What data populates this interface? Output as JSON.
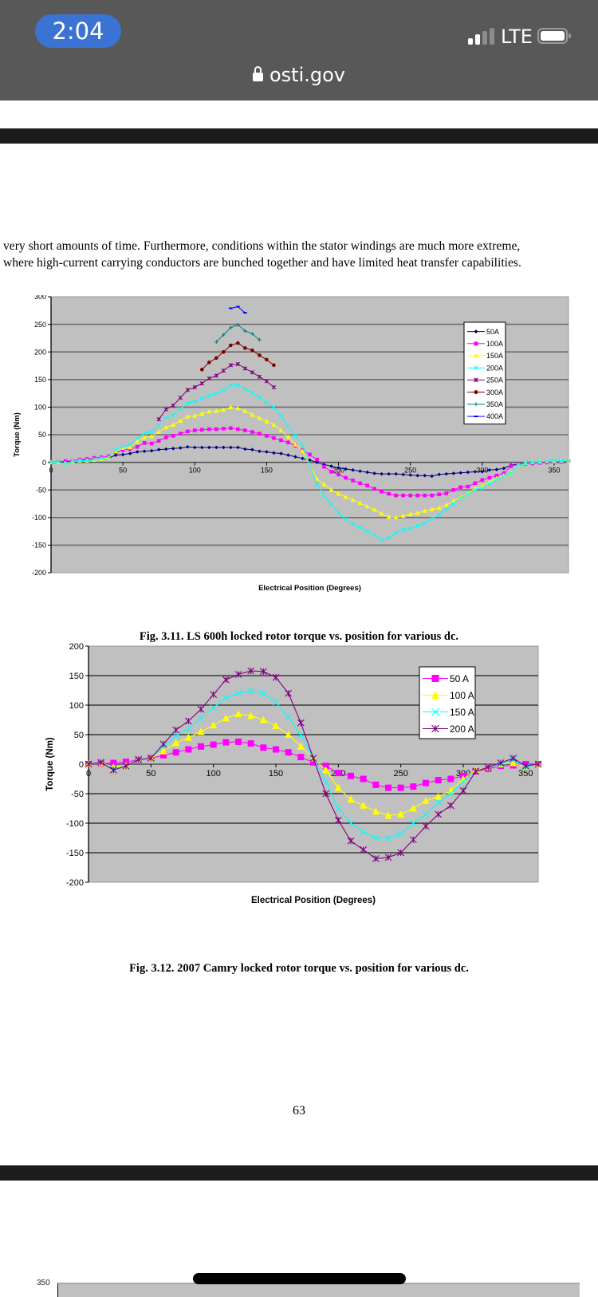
{
  "status_bar": {
    "time": "2:04",
    "network": "LTE",
    "url": "osti.gov"
  },
  "document": {
    "paragraph_lines": [
      "very short amounts of time.  Furthermore, conditions within the stator windings are much more extreme,",
      "where high-current carrying conductors are bunched together and have limited heat transfer capabilities."
    ],
    "page_number": "63",
    "next_page_axis_tick": "350"
  },
  "chart_data": [
    {
      "id": "fig311",
      "type": "line",
      "caption": "Fig. 3.11. LS 600h locked rotor torque vs. position for various dc.",
      "xlabel": "Electrical Position (Degrees)",
      "ylabel": "Torque (Nm)",
      "xlim": [
        0,
        360
      ],
      "ylim": [
        -200,
        300
      ],
      "xticks": [
        0,
        50,
        100,
        150,
        200,
        250,
        300,
        350
      ],
      "yticks": [
        300,
        250,
        200,
        150,
        100,
        50,
        0,
        -50,
        -100,
        -150,
        -200
      ],
      "grid": true,
      "legend_position": "top-right",
      "series": [
        {
          "name": "50A",
          "color": "#000080",
          "marker": "diamond",
          "x": [
            0,
            5,
            10,
            15,
            20,
            25,
            30,
            35,
            40,
            45,
            50,
            55,
            60,
            65,
            70,
            75,
            80,
            85,
            90,
            95,
            100,
            105,
            110,
            115,
            120,
            125,
            130,
            135,
            140,
            145,
            150,
            155,
            160,
            165,
            170,
            175,
            180,
            185,
            190,
            195,
            200,
            205,
            210,
            215,
            220,
            225,
            230,
            235,
            240,
            245,
            250,
            255,
            260,
            265,
            270,
            275,
            280,
            285,
            290,
            295,
            300,
            305,
            310,
            315,
            320,
            325,
            330,
            335,
            340,
            345,
            350,
            355,
            360
          ],
          "y": [
            0,
            0,
            1,
            2,
            3,
            4,
            5,
            6,
            8,
            13,
            14,
            16,
            19,
            20,
            21,
            23,
            24,
            25,
            26,
            28,
            27,
            27,
            27,
            27,
            27,
            27,
            27,
            24,
            23,
            20,
            19,
            17,
            16,
            13,
            10,
            7,
            4,
            0,
            -4,
            -7,
            -10,
            -12,
            -14,
            -16,
            -18,
            -20,
            -21,
            -21,
            -21,
            -22,
            -23,
            -24,
            -24,
            -25,
            -22,
            -21,
            -20,
            -19,
            -18,
            -17,
            -17,
            -14,
            -13,
            -11,
            -5,
            -3,
            -2,
            -1,
            0,
            1,
            1,
            2,
            2
          ]
        },
        {
          "name": "100A",
          "color": "#ff00ff",
          "marker": "square",
          "x": [
            0,
            5,
            10,
            15,
            20,
            25,
            30,
            35,
            40,
            45,
            50,
            55,
            60,
            65,
            70,
            75,
            80,
            85,
            90,
            95,
            100,
            105,
            110,
            115,
            120,
            125,
            130,
            135,
            140,
            145,
            150,
            155,
            160,
            165,
            170,
            175,
            180,
            185,
            190,
            195,
            200,
            205,
            210,
            215,
            220,
            225,
            230,
            235,
            240,
            245,
            250,
            255,
            260,
            265,
            270,
            275,
            280,
            285,
            290,
            295,
            300,
            305,
            310,
            315,
            320,
            325,
            330,
            335,
            340,
            345,
            350,
            355,
            360
          ],
          "y": [
            0,
            1,
            2,
            3,
            5,
            6,
            8,
            9,
            11,
            18,
            22,
            24,
            28,
            35,
            34,
            39,
            45,
            48,
            52,
            56,
            58,
            59,
            60,
            60,
            61,
            62,
            60,
            58,
            55,
            52,
            48,
            44,
            40,
            36,
            30,
            22,
            14,
            5,
            -8,
            -17,
            -22,
            -28,
            -33,
            -38,
            -42,
            -48,
            -53,
            -57,
            -60,
            -60,
            -60,
            -60,
            -60,
            -60,
            -58,
            -56,
            -50,
            -45,
            -44,
            -38,
            -32,
            -28,
            -24,
            -20,
            -7,
            -4,
            -3,
            -2,
            -1,
            0,
            1,
            1,
            2
          ]
        },
        {
          "name": "150A",
          "color": "#ffff00",
          "marker": "triangle",
          "x": [
            0,
            5,
            10,
            15,
            20,
            25,
            30,
            35,
            40,
            45,
            50,
            55,
            60,
            65,
            70,
            75,
            80,
            85,
            90,
            95,
            100,
            105,
            110,
            115,
            120,
            125,
            130,
            135,
            140,
            145,
            150,
            155,
            160,
            165,
            170,
            175,
            185,
            190,
            195,
            200,
            205,
            210,
            215,
            220,
            225,
            230,
            235,
            240,
            245,
            250,
            255,
            260,
            265,
            270,
            275,
            280,
            285,
            290,
            295,
            300,
            305,
            310,
            315,
            320,
            325,
            330,
            335,
            340,
            345,
            350,
            355,
            360
          ],
          "y": [
            0,
            0,
            -2,
            2,
            3,
            3,
            4,
            6,
            8,
            20,
            26,
            27,
            38,
            45,
            47,
            55,
            63,
            68,
            75,
            83,
            84,
            88,
            92,
            93,
            95,
            100,
            98,
            93,
            86,
            80,
            74,
            68,
            58,
            46,
            32,
            20,
            -30,
            -40,
            -50,
            -57,
            -63,
            -68,
            -74,
            -80,
            -86,
            -93,
            -99,
            -100,
            -97,
            -94,
            -92,
            -88,
            -85,
            -83,
            -77,
            -70,
            -64,
            -57,
            -47,
            -43,
            -36,
            -29,
            -24,
            -20,
            -5,
            -2,
            0,
            1,
            2,
            2,
            3,
            2
          ]
        },
        {
          "name": "200A",
          "color": "#00ffff",
          "marker": "x",
          "x": [
            0,
            5,
            10,
            15,
            20,
            25,
            30,
            35,
            40,
            45,
            50,
            55,
            60,
            65,
            70,
            75,
            80,
            85,
            90,
            95,
            100,
            105,
            110,
            115,
            120,
            125,
            130,
            135,
            140,
            145,
            150,
            155,
            160,
            165,
            170,
            175,
            185,
            190,
            195,
            200,
            205,
            210,
            215,
            220,
            225,
            230,
            235,
            240,
            245,
            250,
            255,
            260,
            265,
            270,
            275,
            280,
            285,
            290,
            295,
            300,
            305,
            310,
            315,
            320,
            325,
            330,
            335,
            340,
            345,
            350,
            355,
            360
          ],
          "y": [
            0,
            1,
            -3,
            2,
            3,
            3,
            5,
            7,
            9,
            22,
            28,
            32,
            43,
            53,
            55,
            67,
            80,
            86,
            97,
            107,
            110,
            116,
            121,
            125,
            131,
            140,
            140,
            133,
            126,
            118,
            108,
            100,
            84,
            65,
            48,
            30,
            -40,
            -60,
            -76,
            -92,
            -103,
            -112,
            -118,
            -125,
            -132,
            -141,
            -137,
            -128,
            -122,
            -120,
            -115,
            -110,
            -102,
            -95,
            -86,
            -75,
            -65,
            -58,
            -50,
            -47,
            -39,
            -31,
            -25,
            -20,
            -5,
            -2,
            0,
            1,
            2,
            3,
            3,
            2
          ]
        },
        {
          "name": "250A",
          "color": "#800080",
          "marker": "star",
          "x": [
            75,
            80,
            85,
            90,
            95,
            100,
            105,
            110,
            115,
            120,
            125,
            130,
            135,
            140,
            145,
            150,
            155
          ],
          "y": [
            78,
            96,
            103,
            117,
            131,
            136,
            143,
            152,
            157,
            166,
            176,
            178,
            170,
            163,
            155,
            147,
            136
          ]
        },
        {
          "name": "300A",
          "color": "#800000",
          "marker": "circle",
          "x": [
            105,
            110,
            115,
            120,
            125,
            130,
            135,
            140,
            145,
            150,
            155
          ],
          "y": [
            168,
            181,
            189,
            200,
            212,
            216,
            207,
            203,
            194,
            186,
            176
          ]
        },
        {
          "name": "350A",
          "color": "#008080",
          "marker": "plus",
          "x": [
            115,
            120,
            125,
            130,
            135,
            140,
            145
          ],
          "y": [
            218,
            231,
            244,
            249,
            238,
            233,
            222
          ]
        },
        {
          "name": "400A",
          "color": "#0000ff",
          "marker": "dash",
          "x": [
            125,
            130,
            135
          ],
          "y": [
            279,
            282,
            271
          ]
        }
      ]
    },
    {
      "id": "fig312",
      "type": "line",
      "caption": "Fig. 3.12. 2007 Camry locked rotor torque vs. position for various dc.",
      "xlabel": "Electrical Position (Degrees)",
      "ylabel": "Torque (Nm)",
      "xlim": [
        0,
        360
      ],
      "ylim": [
        -200,
        200
      ],
      "xticks": [
        0,
        50,
        100,
        150,
        200,
        250,
        300,
        350
      ],
      "yticks": [
        200,
        150,
        100,
        50,
        0,
        -50,
        -100,
        -150,
        -200
      ],
      "grid": true,
      "legend_position": "top-right",
      "series": [
        {
          "name": "50 A",
          "color": "#ff00ff",
          "marker": "square",
          "x": [
            0,
            10,
            20,
            30,
            40,
            50,
            60,
            70,
            80,
            90,
            100,
            110,
            120,
            130,
            140,
            150,
            160,
            170,
            180,
            190,
            200,
            210,
            220,
            230,
            240,
            250,
            260,
            270,
            280,
            290,
            300,
            310,
            320,
            330,
            340,
            350,
            360
          ],
          "y": [
            0,
            1,
            2,
            4,
            7,
            10,
            15,
            20,
            25,
            30,
            33,
            37,
            38,
            35,
            28,
            25,
            20,
            12,
            3,
            -3,
            -15,
            -20,
            -25,
            -35,
            -40,
            -40,
            -38,
            -32,
            -27,
            -25,
            -20,
            -12,
            -8,
            -3,
            -2,
            0,
            0
          ]
        },
        {
          "name": "100 A",
          "color": "#ffff00",
          "marker": "triangle",
          "x": [
            0,
            10,
            20,
            30,
            40,
            50,
            60,
            70,
            80,
            90,
            100,
            110,
            120,
            130,
            140,
            150,
            160,
            170,
            180,
            190,
            200,
            210,
            220,
            230,
            240,
            250,
            260,
            270,
            280,
            290,
            300,
            310,
            320,
            330,
            340,
            350,
            360
          ],
          "y": [
            0,
            2,
            -5,
            -2,
            8,
            10,
            22,
            36,
            45,
            55,
            66,
            78,
            85,
            82,
            75,
            65,
            50,
            30,
            10,
            -10,
            -40,
            -60,
            -70,
            -80,
            -87,
            -85,
            -75,
            -62,
            -55,
            -45,
            -25,
            -10,
            -5,
            0,
            2,
            -5,
            0
          ]
        },
        {
          "name": "150 A",
          "color": "#00ffff",
          "marker": "x",
          "x": [
            0,
            10,
            20,
            30,
            40,
            50,
            60,
            70,
            80,
            90,
            100,
            110,
            120,
            130,
            140,
            150,
            160,
            170,
            180,
            190,
            200,
            210,
            220,
            230,
            240,
            250,
            260,
            270,
            280,
            290,
            300,
            310,
            320,
            330,
            340,
            350,
            360
          ],
          "y": [
            0,
            3,
            -8,
            -3,
            7,
            10,
            30,
            48,
            60,
            78,
            95,
            112,
            120,
            124,
            120,
            105,
            80,
            50,
            10,
            -30,
            -75,
            -100,
            -115,
            -125,
            -125,
            -118,
            -100,
            -85,
            -65,
            -50,
            -30,
            -12,
            -5,
            0,
            8,
            -5,
            0
          ]
        },
        {
          "name": "200 A",
          "color": "#800080",
          "marker": "star",
          "x": [
            0,
            10,
            20,
            30,
            40,
            50,
            60,
            70,
            80,
            90,
            100,
            110,
            120,
            130,
            140,
            150,
            160,
            170,
            180,
            190,
            200,
            210,
            220,
            230,
            240,
            250,
            260,
            270,
            280,
            290,
            300,
            310,
            320,
            330,
            340,
            350,
            360
          ],
          "y": [
            0,
            3,
            -10,
            -3,
            8,
            10,
            34,
            58,
            73,
            93,
            118,
            143,
            152,
            158,
            157,
            147,
            120,
            70,
            10,
            -50,
            -95,
            -130,
            -145,
            -160,
            -158,
            -150,
            -128,
            -105,
            -85,
            -70,
            -45,
            -12,
            -5,
            2,
            10,
            -3,
            0
          ]
        }
      ]
    }
  ]
}
